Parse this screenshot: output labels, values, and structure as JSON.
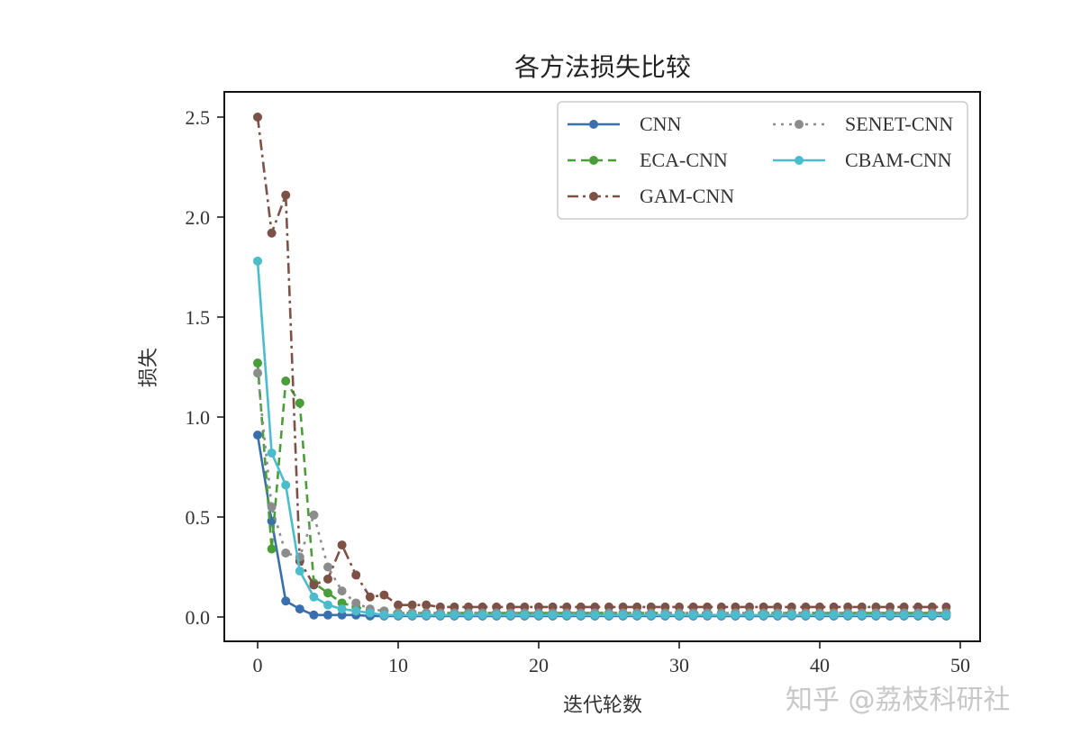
{
  "chart_data": {
    "type": "line",
    "title": "各方法损失比较",
    "xlabel": "迭代轮数",
    "ylabel": "损失",
    "xlim": [
      -3,
      52
    ],
    "ylim": [
      -0.12,
      2.63
    ],
    "xticks": [
      0,
      10,
      20,
      30,
      40,
      50
    ],
    "xtick_labels": [
      "0",
      "10",
      "20",
      "30",
      "40",
      "50"
    ],
    "yticks": [
      0.0,
      0.5,
      1.0,
      1.5,
      2.0,
      2.5
    ],
    "ytick_labels": [
      "0.0",
      "0.5",
      "1.0",
      "1.5",
      "2.0",
      "2.5"
    ],
    "grid": false,
    "legend_position": "upper right",
    "legend_columns": 2,
    "x": [
      0,
      1,
      2,
      3,
      4,
      5,
      6,
      7,
      8,
      9,
      10,
      11,
      12,
      13,
      14,
      15,
      16,
      17,
      18,
      19,
      20,
      21,
      22,
      23,
      24,
      25,
      26,
      27,
      28,
      29,
      30,
      31,
      32,
      33,
      34,
      35,
      36,
      37,
      38,
      39,
      40,
      41,
      42,
      43,
      44,
      45,
      46,
      47,
      48,
      49
    ],
    "series": [
      {
        "name": "CNN",
        "color": "#3a6fae",
        "style": "solid",
        "values": [
          0.91,
          0.48,
          0.08,
          0.04,
          0.01,
          0.01,
          0.01,
          0.01,
          0.005,
          0.005,
          0.005,
          0.005,
          0.005,
          0.005,
          0.005,
          0.005,
          0.005,
          0.005,
          0.005,
          0.005,
          0.005,
          0.005,
          0.005,
          0.005,
          0.005,
          0.005,
          0.005,
          0.005,
          0.005,
          0.005,
          0.005,
          0.005,
          0.005,
          0.005,
          0.005,
          0.005,
          0.005,
          0.005,
          0.005,
          0.005,
          0.005,
          0.005,
          0.005,
          0.005,
          0.005,
          0.005,
          0.005,
          0.005,
          0.005,
          0.005
        ]
      },
      {
        "name": "ECA-CNN",
        "color": "#4a9e3a",
        "style": "dashed",
        "values": [
          1.27,
          0.34,
          1.18,
          1.07,
          0.17,
          0.12,
          0.07,
          0.05,
          0.03,
          0.03,
          0.02,
          0.02,
          0.02,
          0.02,
          0.02,
          0.02,
          0.02,
          0.02,
          0.02,
          0.02,
          0.02,
          0.02,
          0.02,
          0.02,
          0.02,
          0.02,
          0.02,
          0.02,
          0.02,
          0.02,
          0.02,
          0.02,
          0.02,
          0.02,
          0.02,
          0.02,
          0.02,
          0.02,
          0.02,
          0.02,
          0.02,
          0.02,
          0.02,
          0.02,
          0.02,
          0.02,
          0.02,
          0.02,
          0.02,
          0.02
        ]
      },
      {
        "name": "GAM-CNN",
        "color": "#7e5147",
        "style": "dashdot",
        "values": [
          2.5,
          1.92,
          2.11,
          0.28,
          0.16,
          0.19,
          0.36,
          0.21,
          0.1,
          0.11,
          0.06,
          0.06,
          0.06,
          0.05,
          0.05,
          0.05,
          0.05,
          0.05,
          0.05,
          0.05,
          0.05,
          0.05,
          0.05,
          0.05,
          0.05,
          0.05,
          0.05,
          0.05,
          0.05,
          0.05,
          0.05,
          0.05,
          0.05,
          0.05,
          0.05,
          0.05,
          0.05,
          0.05,
          0.05,
          0.05,
          0.05,
          0.05,
          0.05,
          0.05,
          0.05,
          0.05,
          0.05,
          0.05,
          0.05,
          0.05
        ]
      },
      {
        "name": "SENET-CNN",
        "color": "#8c8c8c",
        "style": "dotted",
        "values": [
          1.22,
          0.55,
          0.32,
          0.3,
          0.51,
          0.25,
          0.13,
          0.07,
          0.04,
          0.03,
          0.02,
          0.02,
          0.02,
          0.02,
          0.02,
          0.02,
          0.02,
          0.02,
          0.02,
          0.02,
          0.02,
          0.02,
          0.02,
          0.02,
          0.02,
          0.02,
          0.02,
          0.02,
          0.02,
          0.02,
          0.02,
          0.02,
          0.02,
          0.02,
          0.02,
          0.02,
          0.02,
          0.02,
          0.02,
          0.02,
          0.02,
          0.02,
          0.02,
          0.02,
          0.02,
          0.02,
          0.02,
          0.02,
          0.02,
          0.02
        ]
      },
      {
        "name": "CBAM-CNN",
        "color": "#4bbccc",
        "style": "solid",
        "values": [
          1.78,
          0.82,
          0.66,
          0.23,
          0.1,
          0.06,
          0.04,
          0.03,
          0.02,
          0.01,
          0.01,
          0.01,
          0.01,
          0.01,
          0.01,
          0.01,
          0.01,
          0.01,
          0.01,
          0.01,
          0.01,
          0.01,
          0.01,
          0.01,
          0.01,
          0.01,
          0.01,
          0.01,
          0.01,
          0.01,
          0.01,
          0.01,
          0.01,
          0.01,
          0.01,
          0.01,
          0.01,
          0.01,
          0.01,
          0.01,
          0.01,
          0.01,
          0.01,
          0.01,
          0.01,
          0.01,
          0.01,
          0.01,
          0.01,
          0.01
        ]
      }
    ]
  },
  "watermark": "知乎 @荔枝科研社"
}
